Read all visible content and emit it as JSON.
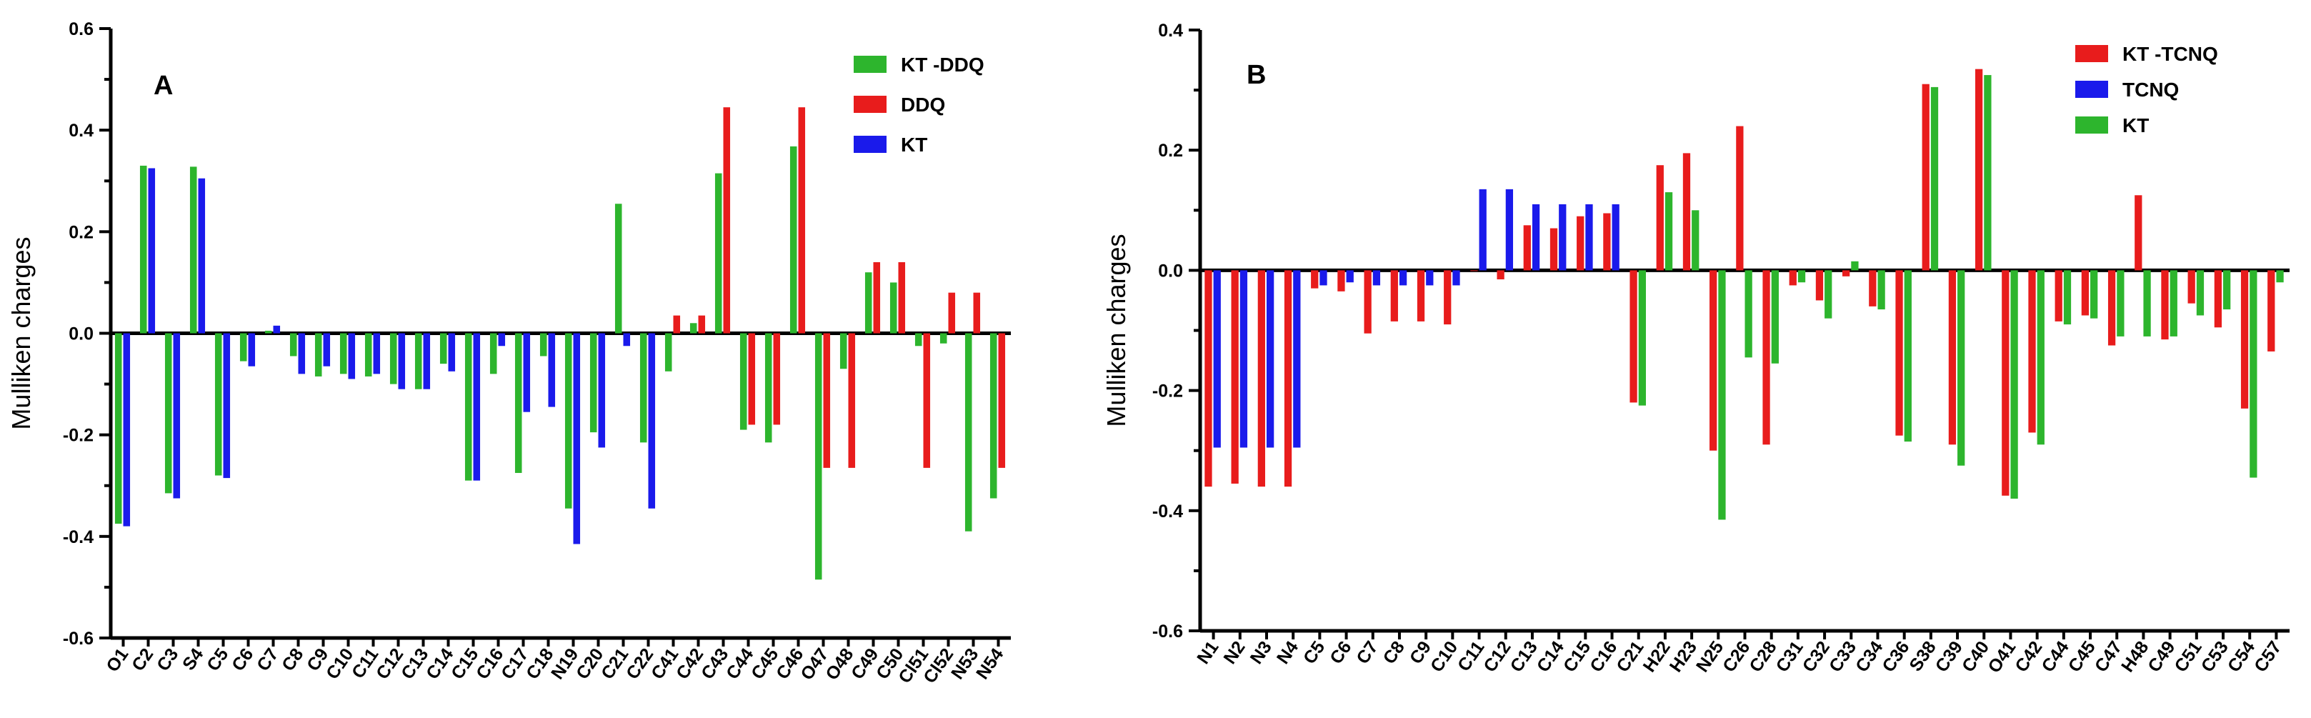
{
  "chart_data": [
    {
      "type": "bar",
      "panel_label": "A",
      "ylabel": "Mulliken charges",
      "xlabel": "",
      "ylim": [
        -0.6,
        0.6
      ],
      "yticks": [
        -0.6,
        -0.4,
        -0.2,
        0.0,
        0.2,
        0.4,
        0.6
      ],
      "ytick_labels": [
        "-0.6",
        "-0.4",
        "-0.2",
        "0.0",
        "0.2",
        "0.4",
        "0.6"
      ],
      "legend_position": "top-right",
      "categories": [
        "O1",
        "C2",
        "C3",
        "S4",
        "C5",
        "C6",
        "C7",
        "C8",
        "C9",
        "C10",
        "C11",
        "C12",
        "C13",
        "C14",
        "C15",
        "C16",
        "C17",
        "C18",
        "N19",
        "C20",
        "C21",
        "C22",
        "C41",
        "C42",
        "C43",
        "C44",
        "C45",
        "C46",
        "O47",
        "O48",
        "C49",
        "C50",
        "Cl51",
        "Cl52",
        "N53",
        "N54"
      ],
      "series": [
        {
          "name": "KT -DDQ",
          "color": "#2db52d",
          "values": [
            -0.375,
            0.33,
            -0.315,
            0.328,
            -0.28,
            -0.055,
            0.005,
            -0.045,
            -0.085,
            -0.08,
            -0.085,
            -0.1,
            -0.11,
            -0.06,
            -0.29,
            -0.08,
            -0.275,
            -0.045,
            -0.345,
            -0.195,
            0.255,
            -0.215,
            -0.075,
            0.02,
            0.315,
            -0.19,
            -0.215,
            0.368,
            -0.485,
            -0.07,
            0.12,
            0.1,
            -0.025,
            -0.02,
            -0.39,
            -0.325
          ]
        },
        {
          "name": "DDQ",
          "color": "#e81c1c",
          "values": [
            null,
            null,
            null,
            null,
            null,
            null,
            null,
            null,
            null,
            null,
            null,
            null,
            null,
            null,
            null,
            null,
            null,
            null,
            null,
            null,
            null,
            null,
            0.035,
            0.035,
            0.445,
            -0.18,
            -0.18,
            0.445,
            -0.265,
            -0.265,
            0.14,
            0.14,
            -0.265,
            0.08,
            0.08,
            -0.265
          ]
        },
        {
          "name": "KT",
          "color": "#1a1aeb",
          "values": [
            -0.38,
            0.325,
            -0.325,
            0.305,
            -0.285,
            -0.065,
            0.015,
            -0.08,
            -0.065,
            -0.09,
            -0.08,
            -0.11,
            -0.11,
            -0.075,
            -0.29,
            -0.025,
            -0.155,
            -0.145,
            -0.415,
            -0.225,
            -0.025,
            -0.345,
            null,
            null,
            null,
            null,
            null,
            null,
            null,
            null,
            null,
            null,
            null,
            null,
            null,
            null
          ]
        }
      ]
    },
    {
      "type": "bar",
      "panel_label": "B",
      "ylabel": "Mulliken charges",
      "xlabel": "",
      "ylim": [
        -0.6,
        0.4
      ],
      "yticks": [
        -0.6,
        -0.4,
        -0.2,
        0.0,
        0.2,
        0.4
      ],
      "ytick_labels": [
        "-0.6",
        "-0.4",
        "-0.2",
        "0.0",
        "0.2",
        "0.4"
      ],
      "legend_position": "top-right",
      "categories": [
        "N1",
        "N2",
        "N3",
        "N4",
        "C5",
        "C6",
        "C7",
        "C8",
        "C9",
        "C10",
        "C11",
        "C12",
        "C13",
        "C14",
        "C15",
        "C16",
        "C21",
        "H22",
        "H23",
        "N25",
        "C26",
        "C28",
        "C31",
        "C32",
        "C33",
        "C34",
        "C36",
        "S38",
        "C39",
        "C40",
        "O41",
        "C42",
        "C44",
        "C45",
        "C47",
        "H48",
        "C49",
        "C51",
        "C53",
        "C54",
        "C57"
      ],
      "series": [
        {
          "name": "KT -TCNQ",
          "color": "#e81c1c",
          "values": [
            -0.36,
            -0.355,
            -0.36,
            -0.36,
            -0.03,
            -0.035,
            -0.105,
            -0.085,
            -0.085,
            -0.09,
            0.0,
            -0.015,
            0.075,
            0.07,
            0.09,
            0.095,
            -0.22,
            0.175,
            0.195,
            -0.3,
            0.24,
            -0.29,
            -0.025,
            -0.05,
            -0.01,
            -0.06,
            -0.275,
            0.31,
            -0.29,
            0.335,
            -0.375,
            -0.27,
            -0.085,
            -0.075,
            -0.125,
            0.125,
            -0.115,
            -0.055,
            -0.095,
            -0.23,
            -0.135
          ]
        },
        {
          "name": "TCNQ",
          "color": "#1a1aeb",
          "values": [
            -0.295,
            -0.295,
            -0.295,
            -0.295,
            -0.025,
            -0.02,
            -0.025,
            -0.025,
            -0.025,
            -0.025,
            0.135,
            0.135,
            0.11,
            0.11,
            0.11,
            0.11,
            null,
            null,
            null,
            null,
            null,
            null,
            null,
            null,
            null,
            null,
            null,
            null,
            null,
            null,
            null,
            null,
            null,
            null,
            null,
            null,
            null,
            null,
            null,
            null,
            null
          ]
        },
        {
          "name": "KT",
          "color": "#2db52d",
          "values": [
            null,
            null,
            null,
            null,
            null,
            null,
            null,
            null,
            null,
            null,
            null,
            null,
            null,
            null,
            null,
            null,
            -0.225,
            0.13,
            0.1,
            -0.415,
            -0.145,
            -0.155,
            -0.02,
            -0.08,
            0.015,
            -0.065,
            -0.285,
            0.305,
            -0.325,
            0.325,
            -0.38,
            -0.29,
            -0.09,
            -0.08,
            -0.11,
            -0.11,
            -0.11,
            -0.075,
            -0.065,
            -0.345,
            -0.02
          ]
        }
      ]
    }
  ]
}
